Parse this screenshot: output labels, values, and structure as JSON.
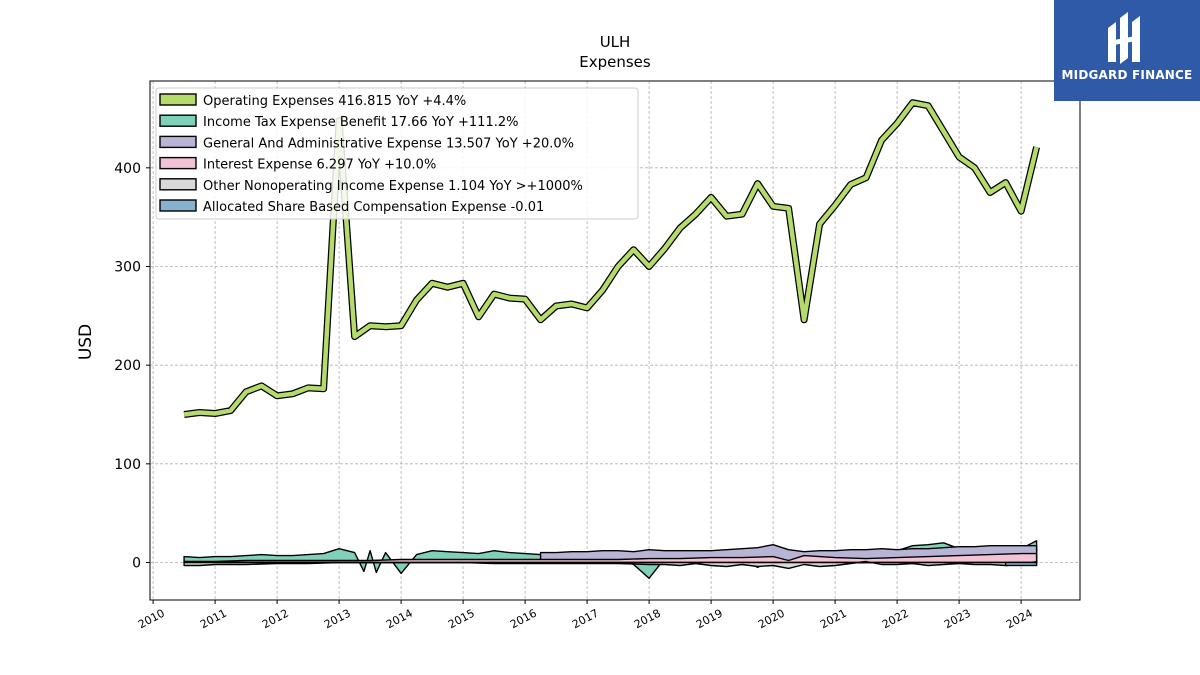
{
  "brand": {
    "name": "MIDGARD FINANCE",
    "bg_color": "#2f5aa8"
  },
  "chart_data": {
    "type": "area",
    "title": "ULH",
    "subtitle": "Expenses",
    "ylabel": "USD",
    "xlabel": "",
    "ylim": [
      -38,
      488
    ],
    "xlim": [
      2009.95,
      2024.95
    ],
    "yticks": [
      0,
      100,
      200,
      300,
      400
    ],
    "xticks": [
      "2010",
      "2011",
      "2012",
      "2013",
      "2014",
      "2015",
      "2016",
      "2017",
      "2018",
      "2019",
      "2020",
      "2021",
      "2022",
      "2023",
      "2024"
    ],
    "grid": true,
    "legend_position": "top-left",
    "legend_entries": [
      "Operating Expenses  416.815 YoY +4.4%",
      "Income Tax Expense Benefit  17.66 YoY +111.2%",
      "General And Administrative Expense  13.507 YoY +20.0%",
      "Interest Expense  6.297 YoY +10.0%",
      "Other Nonoperating Income Expense  1.104 YoY >+1000%",
      "Allocated Share Based Compensation Expense  -0.01"
    ],
    "series": [
      {
        "name": "Operating Expenses",
        "color": "#b5dc6b",
        "x": [
          2010.5,
          2010.75,
          2011.0,
          2011.25,
          2011.5,
          2011.75,
          2012.0,
          2012.25,
          2012.5,
          2012.75,
          2013.0,
          2013.25,
          2013.5,
          2013.75,
          2014.0,
          2014.25,
          2014.5,
          2014.75,
          2015.0,
          2015.25,
          2015.5,
          2015.75,
          2016.0,
          2016.25,
          2016.5,
          2016.75,
          2017.0,
          2017.25,
          2017.5,
          2017.75,
          2018.0,
          2018.25,
          2018.5,
          2018.75,
          2019.0,
          2019.25,
          2019.5,
          2019.75,
          2020.0,
          2020.25,
          2020.5,
          2020.75,
          2021.0,
          2021.25,
          2021.5,
          2021.75,
          2022.0,
          2022.25,
          2022.5,
          2022.75,
          2023.0,
          2023.25,
          2023.5,
          2023.75,
          2024.0,
          2024.25
        ],
        "values": [
          150,
          152,
          151,
          154,
          173,
          179,
          169,
          171,
          177,
          176,
          448,
          229,
          240,
          239,
          240,
          266,
          283,
          279,
          283,
          249,
          272,
          268,
          267,
          246,
          260,
          262,
          258,
          276,
          300,
          317,
          300,
          318,
          339,
          353,
          370,
          351,
          353,
          384,
          361,
          359,
          246,
          343,
          362,
          383,
          390,
          428,
          445,
          466,
          463,
          437,
          411,
          400,
          375,
          385,
          356,
          421
        ]
      },
      {
        "name": "Income Tax Expense Benefit",
        "color": "#7fd1b9",
        "x": [
          2010.5,
          2010.75,
          2011.0,
          2011.25,
          2011.5,
          2011.75,
          2012.0,
          2012.25,
          2012.5,
          2012.75,
          2013.0,
          2013.25,
          2013.4,
          2013.5,
          2013.6,
          2013.75,
          2014.0,
          2014.25,
          2014.5,
          2014.75,
          2015.0,
          2015.25,
          2015.5,
          2015.75,
          2016.0,
          2016.25,
          2016.5,
          2016.75,
          2017.0,
          2017.25,
          2017.5,
          2017.75,
          2018.0,
          2018.25,
          2018.5,
          2018.75,
          2019.0,
          2019.25,
          2019.5,
          2019.75,
          2020.0,
          2020.25,
          2020.5,
          2020.75,
          2021.0,
          2021.25,
          2021.5,
          2021.75,
          2022.0,
          2022.25,
          2022.5,
          2022.75,
          2023.0,
          2023.25,
          2023.5,
          2023.75,
          2024.0,
          2024.25
        ],
        "values": [
          6,
          5,
          6,
          6,
          7,
          8,
          7,
          7,
          8,
          9,
          14,
          10,
          -9,
          12,
          -10,
          10,
          -11,
          8,
          12,
          11,
          10,
          9,
          12,
          10,
          9,
          8,
          8,
          8,
          7,
          5,
          4,
          -2,
          -16,
          4,
          5,
          6,
          7,
          5,
          5,
          -5,
          4,
          5,
          6,
          6,
          8,
          6,
          7,
          10,
          12,
          17,
          18,
          20,
          14,
          13,
          12,
          15,
          14,
          22
        ]
      },
      {
        "name": "General And Administrative Expense",
        "color": "#b8b4d6",
        "x": [
          2016.25,
          2016.5,
          2016.75,
          2017.0,
          2017.25,
          2017.5,
          2017.75,
          2018.0,
          2018.25,
          2018.5,
          2018.75,
          2019.0,
          2019.25,
          2019.5,
          2019.75,
          2020.0,
          2020.25,
          2020.5,
          2020.75,
          2021.0,
          2021.25,
          2021.5,
          2021.75,
          2022.0,
          2022.25,
          2022.5,
          2022.75,
          2023.0,
          2023.25,
          2023.5,
          2023.75,
          2024.0,
          2024.25
        ],
        "values": [
          10,
          10,
          11,
          11,
          12,
          12,
          11,
          13,
          12,
          12,
          12,
          12,
          13,
          14,
          15,
          18,
          13,
          11,
          12,
          12,
          13,
          13,
          14,
          13,
          14,
          14,
          15,
          16,
          16,
          17,
          17,
          17,
          17
        ]
      },
      {
        "name": "Interest Expense",
        "color": "#f4c2d7",
        "x": [
          2010.5,
          2011.0,
          2011.5,
          2012.0,
          2012.5,
          2013.0,
          2013.5,
          2014.0,
          2014.5,
          2015.0,
          2015.5,
          2016.0,
          2016.5,
          2017.0,
          2017.5,
          2018.0,
          2018.5,
          2019.0,
          2019.5,
          2020.0,
          2020.25,
          2020.5,
          2021.0,
          2021.5,
          2022.0,
          2022.5,
          2023.0,
          2023.5,
          2024.0,
          2024.25
        ],
        "values": [
          1,
          1,
          2,
          2,
          2,
          2,
          2,
          3,
          3,
          3,
          3,
          3,
          3,
          3,
          3,
          4,
          4,
          5,
          5,
          6,
          2,
          7,
          5,
          4,
          5,
          6,
          7,
          8,
          9,
          9
        ]
      },
      {
        "name": "Other Nonoperating Income Expense",
        "color": "#d9d9d9",
        "x": [
          2010.5,
          2010.75,
          2011.0,
          2011.5,
          2012.0,
          2012.5,
          2013.0,
          2013.5,
          2014.0,
          2014.5,
          2015.0,
          2015.5,
          2016.0,
          2016.5,
          2017.0,
          2017.5,
          2018.0,
          2018.25,
          2018.5,
          2018.75,
          2019.0,
          2019.25,
          2019.5,
          2019.75,
          2020.0,
          2020.25,
          2020.5,
          2020.75,
          2021.0,
          2021.25,
          2021.5,
          2021.75,
          2022.0,
          2022.25,
          2022.5,
          2022.75,
          2023.0,
          2023.25,
          2023.5,
          2023.75,
          2024.0,
          2024.25
        ],
        "values": [
          -3,
          -3,
          -2,
          -2,
          -1,
          -1,
          0,
          0,
          0,
          0,
          0,
          -1,
          -1,
          -1,
          -1,
          -1,
          -2,
          -2,
          -3,
          -1,
          -3,
          -4,
          -2,
          -4,
          -3,
          -6,
          -2,
          -4,
          -3,
          -1,
          1,
          -2,
          -2,
          -1,
          -3,
          -2,
          -1,
          -2,
          -2,
          -3,
          -2,
          1
        ]
      },
      {
        "name": "Allocated Share Based Compensation Expense",
        "color": "#86b1d1",
        "x": [
          2023.75,
          2024.0,
          2024.25
        ],
        "values": [
          -0.01,
          -0.01,
          -0.01
        ],
        "visual_min": -3
      }
    ]
  }
}
